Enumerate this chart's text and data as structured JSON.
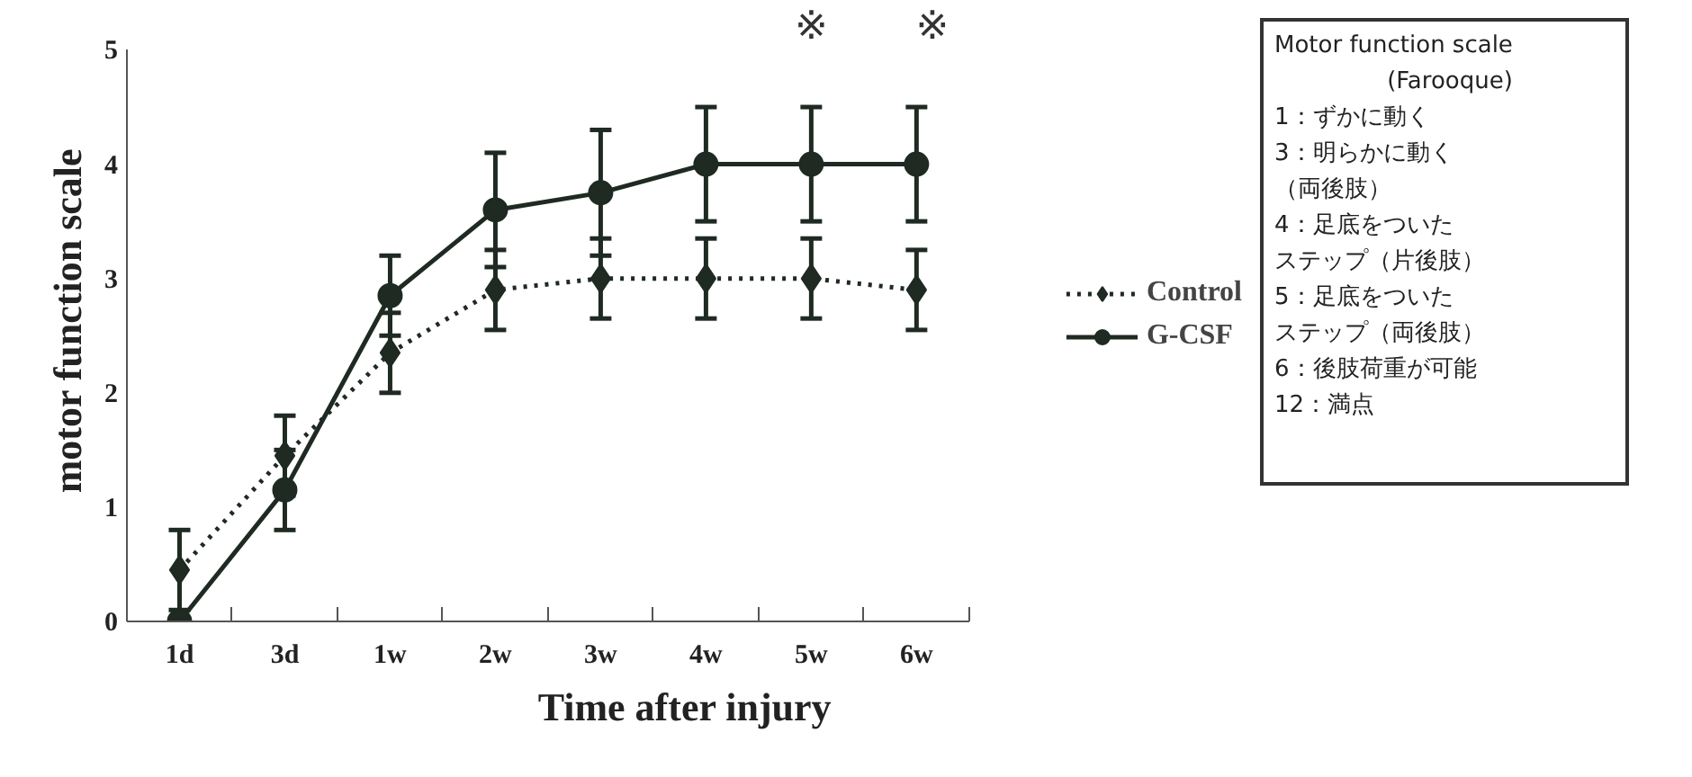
{
  "chart_data": {
    "type": "line",
    "xlabel": "Time after injury",
    "ylabel": "motor  function scale",
    "categories": [
      "1d",
      "3d",
      "1w",
      "2w",
      "3w",
      "4w",
      "5w",
      "6w"
    ],
    "series": [
      {
        "name": "Control",
        "color": "#1f2a22",
        "line_style": "dotted",
        "marker": "diamond",
        "values": [
          0.45,
          1.45,
          2.35,
          2.9,
          3.0,
          3.0,
          3.0,
          2.9
        ],
        "errors": [
          0.35,
          0.35,
          0.35,
          0.35,
          0.35,
          0.35,
          0.35,
          0.35
        ]
      },
      {
        "name": "G-CSF",
        "color": "#1f2a22",
        "line_style": "solid",
        "marker": "circle",
        "values": [
          0.0,
          1.15,
          2.85,
          3.6,
          3.75,
          4.0,
          4.0,
          4.0
        ],
        "errors": [
          null,
          0.35,
          0.35,
          0.5,
          0.55,
          0.5,
          0.5,
          0.5
        ]
      }
    ],
    "ylim": [
      0,
      5
    ],
    "yticks": [
      0,
      1,
      2,
      3,
      4,
      5
    ],
    "grid": false,
    "legend": "right",
    "annotations": [
      "※",
      "※",
      "Motor function scale",
      "(Farooque)",
      "1：ずかに動く",
      "3：明らかに動く",
      "（両後肢）",
      "4：足底をついた",
      "ステップ（片後肢）",
      "5：足底をついた",
      "ステップ（両後肢）",
      "6：後肢荷重が可能",
      "12：満点"
    ]
  }
}
